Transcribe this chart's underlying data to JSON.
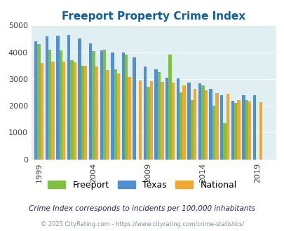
{
  "title": "Freeport Property Crime Index",
  "title_color": "#1060a0",
  "subtitle": "Crime Index corresponds to incidents per 100,000 inhabitants",
  "footer": "© 2025 CityRating.com - https://www.cityrating.com/crime-statistics/",
  "years": [
    1999,
    2000,
    2001,
    2002,
    2003,
    2004,
    2005,
    2006,
    2007,
    2008,
    2009,
    2010,
    2011,
    2012,
    2013,
    2014,
    2015,
    2016,
    2017,
    2018,
    2019,
    2020
  ],
  "freeport": [
    4300,
    4100,
    4075,
    3700,
    3500,
    4050,
    4100,
    3350,
    3900,
    0,
    2700,
    3250,
    3900,
    2500,
    2200,
    2750,
    2000,
    1350,
    2100,
    2200,
    0,
    0
  ],
  "texas": [
    4400,
    4600,
    4625,
    4650,
    4500,
    4325,
    4075,
    4000,
    4000,
    3800,
    3475,
    3375,
    3050,
    3025,
    2875,
    2850,
    2625,
    2400,
    2175,
    2400,
    2400,
    0
  ],
  "national": [
    3600,
    3650,
    3650,
    3625,
    3500,
    3475,
    3325,
    3200,
    3075,
    2950,
    2925,
    2900,
    2875,
    2750,
    2625,
    2575,
    2475,
    2450,
    2200,
    2150,
    2125,
    0
  ],
  "freeport_color": "#80c040",
  "texas_color": "#5090d0",
  "national_color": "#f0a830",
  "bg_color": "#e0eff2",
  "ylim": [
    0,
    5000
  ],
  "yticks": [
    0,
    1000,
    2000,
    3000,
    4000,
    5000
  ],
  "xtick_years": [
    1999,
    2004,
    2009,
    2014,
    2019
  ],
  "bar_width": 0.28,
  "legend_labels": [
    "Freeport",
    "Texas",
    "National"
  ],
  "legend_colors": [
    "#80c040",
    "#5090d0",
    "#f0a830"
  ]
}
